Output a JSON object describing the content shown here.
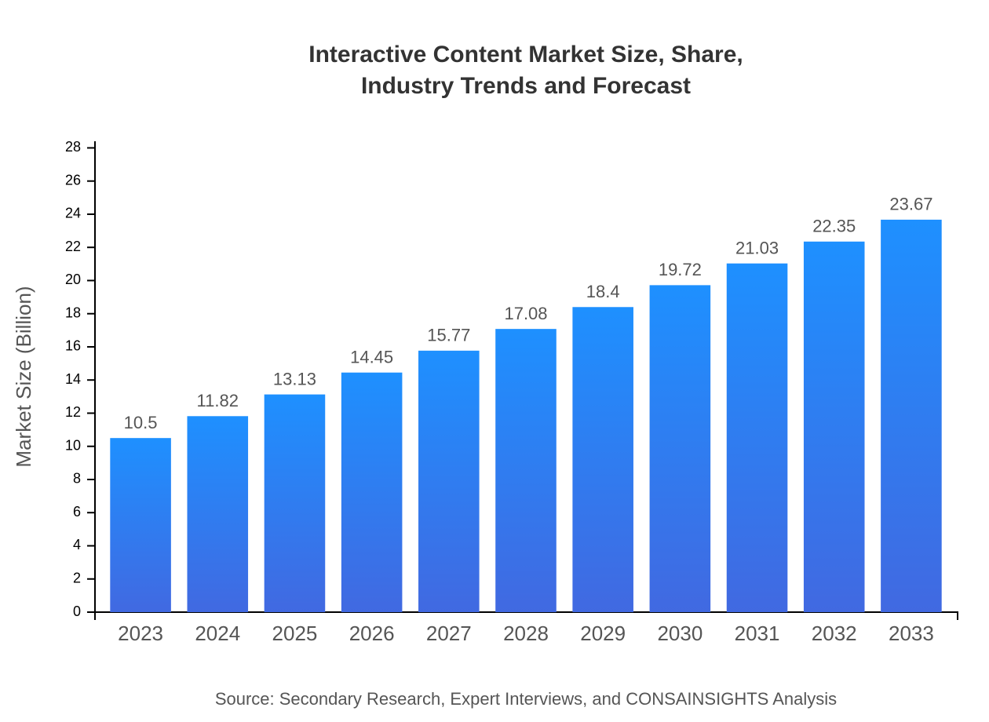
{
  "chart_data": {
    "type": "bar",
    "title": "Interactive Content Market Size, Share, Industry Trends and Forecast",
    "y_label": "Market Size (Billion)",
    "source": "Source: Secondary Research, Expert Interviews, and CONSAINSIGHTS Analysis",
    "categories": [
      "2023",
      "2024",
      "2025",
      "2026",
      "2027",
      "2028",
      "2029",
      "2030",
      "2031",
      "2032",
      "2033"
    ],
    "values": [
      10.5,
      11.82,
      13.13,
      14.45,
      15.77,
      17.08,
      18.4,
      19.72,
      21.03,
      22.35,
      23.67
    ],
    "color": "#1e90ff",
    "gradient_end_color": "#4169e1",
    "ylim": [
      0,
      28.4
    ],
    "yticks": [
      0,
      2,
      4,
      6,
      8,
      10,
      12,
      14,
      16,
      18,
      20,
      22,
      24,
      26,
      28
    ],
    "grid": false
  }
}
